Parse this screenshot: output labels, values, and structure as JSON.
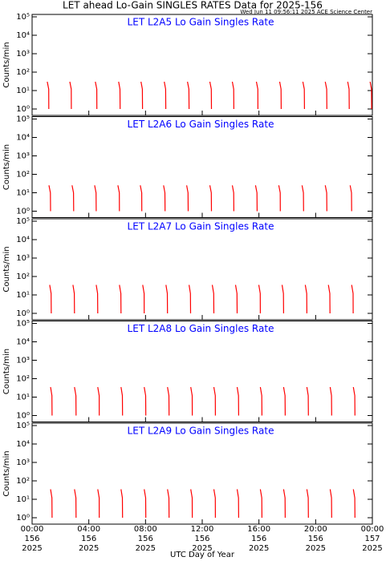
{
  "title": "LET ahead Lo-Gain SINGLES RATES Data for 2025-156",
  "timestamp": "Wed Jun 11 09:56:11 2025 ACE Science Center",
  "xlabel": "UTC Day of Year",
  "xlim": [
    0,
    24
  ],
  "xticks": [
    {
      "value": 0,
      "label": "00:00",
      "day": "156",
      "year": "2025"
    },
    {
      "value": 4,
      "label": "04:00",
      "day": "156",
      "year": "2025"
    },
    {
      "value": 8,
      "label": "08:00",
      "day": "156",
      "year": "2025"
    },
    {
      "value": 12,
      "label": "12:00",
      "day": "156",
      "year": "2025"
    },
    {
      "value": 16,
      "label": "16:00",
      "day": "156",
      "year": "2025"
    },
    {
      "value": 20,
      "label": "20:00",
      "day": "156",
      "year": "2025"
    },
    {
      "value": 24,
      "label": "00:00",
      "day": "157",
      "year": "2025"
    }
  ],
  "chart_data": [
    {
      "type": "line",
      "title": "LET L2A5 Lo Gain Singles Rate",
      "ylabel": "Counts/min",
      "log_y": true,
      "color": "#ff0000",
      "ylim": [
        1,
        100000
      ],
      "yticks": [
        {
          "value": 1,
          "label": "10⁰"
        },
        {
          "value": 10,
          "label": "10¹"
        },
        {
          "value": 100,
          "label": "10²"
        },
        {
          "value": 1000,
          "label": "10³"
        },
        {
          "value": 10000,
          "label": "10⁴"
        },
        {
          "value": 100000,
          "label": "10⁵"
        }
      ],
      "x": [
        1.07,
        1.17,
        1.18,
        null,
        2.66,
        2.76,
        2.77,
        null,
        4.46,
        4.56,
        4.57,
        null,
        6.1,
        6.2,
        6.21,
        null,
        7.68,
        7.78,
        7.79,
        null,
        9.32,
        9.42,
        9.43,
        null,
        10.96,
        11.06,
        11.07,
        null,
        12.54,
        12.64,
        12.65,
        null,
        14.12,
        14.22,
        14.23,
        null,
        15.82,
        15.92,
        15.93,
        null,
        17.46,
        17.56,
        17.57,
        null,
        19.1,
        19.2,
        19.21,
        null,
        20.68,
        20.78,
        20.79,
        null,
        22.26,
        22.36,
        22.37,
        null,
        23.84,
        23.94,
        23.95,
        null
      ],
      "values": [
        30,
        12,
        1,
        null,
        30,
        12,
        1,
        null,
        30,
        12,
        1,
        null,
        30,
        12,
        1,
        null,
        30,
        12,
        1,
        null,
        30,
        12,
        1,
        null,
        30,
        12,
        1,
        null,
        30,
        12,
        1,
        null,
        30,
        12,
        1,
        null,
        30,
        12,
        1,
        null,
        30,
        12,
        1,
        null,
        30,
        12,
        1,
        null,
        30,
        12,
        1,
        null,
        30,
        12,
        1,
        null,
        30,
        12,
        1,
        null
      ]
    },
    {
      "type": "line",
      "title": "LET L2A6 Lo Gain Singles Rate",
      "ylabel": "Counts/min",
      "log_y": true,
      "color": "#ff0000",
      "ylim": [
        1,
        100000
      ],
      "yticks": [
        {
          "value": 1,
          "label": "10⁰"
        },
        {
          "value": 10,
          "label": "10¹"
        },
        {
          "value": 100,
          "label": "10²"
        },
        {
          "value": 1000,
          "label": "10³"
        },
        {
          "value": 10000,
          "label": "10⁴"
        },
        {
          "value": 100000,
          "label": "10⁵"
        }
      ],
      "x": [
        1.19,
        1.29,
        1.3,
        null,
        2.82,
        2.92,
        2.93,
        null,
        4.41,
        4.51,
        4.52,
        null,
        6.05,
        6.15,
        6.16,
        null,
        7.63,
        7.73,
        7.74,
        null,
        9.27,
        9.37,
        9.38,
        null,
        10.9,
        11.0,
        11.01,
        null,
        12.54,
        12.64,
        12.65,
        null,
        14.12,
        14.22,
        14.23,
        null,
        15.76,
        15.86,
        15.87,
        null,
        17.4,
        17.5,
        17.51,
        null,
        19.04,
        19.14,
        19.15,
        null,
        20.68,
        20.78,
        20.79,
        null,
        22.43,
        22.53,
        22.54,
        null
      ],
      "values": [
        25,
        10,
        1,
        null,
        25,
        10,
        1,
        null,
        25,
        10,
        1,
        null,
        25,
        10,
        1,
        null,
        25,
        10,
        1,
        null,
        25,
        10,
        1,
        null,
        25,
        10,
        1,
        null,
        25,
        10,
        1,
        null,
        25,
        10,
        1,
        null,
        25,
        10,
        1,
        null,
        25,
        10,
        1,
        null,
        25,
        10,
        1,
        null,
        25,
        10,
        1,
        null,
        25,
        10,
        1,
        null
      ]
    },
    {
      "type": "line",
      "title": "LET L2A7 Lo Gain Singles Rate",
      "ylabel": "Counts/min",
      "log_y": true,
      "color": "#ff0000",
      "ylim": [
        1,
        100000
      ],
      "yticks": [
        {
          "value": 1,
          "label": "10⁰"
        },
        {
          "value": 10,
          "label": "10¹"
        },
        {
          "value": 100,
          "label": "10²"
        },
        {
          "value": 1000,
          "label": "10³"
        },
        {
          "value": 10000,
          "label": "10⁴"
        },
        {
          "value": 100000,
          "label": "10⁵"
        }
      ],
      "x": [
        1.24,
        1.34,
        1.35,
        null,
        2.88,
        2.98,
        2.99,
        null,
        4.52,
        4.62,
        4.63,
        null,
        6.16,
        6.26,
        6.27,
        null,
        7.8,
        7.9,
        7.91,
        null,
        9.44,
        9.54,
        9.55,
        null,
        11.07,
        11.17,
        11.18,
        null,
        12.71,
        12.81,
        12.82,
        null,
        14.35,
        14.45,
        14.46,
        null,
        15.99,
        16.09,
        16.1,
        null,
        17.63,
        17.73,
        17.74,
        null,
        19.27,
        19.37,
        19.38,
        null,
        20.9,
        21.0,
        21.01,
        null,
        22.54,
        22.64,
        22.65,
        null
      ],
      "values": [
        35,
        12,
        1,
        null,
        35,
        12,
        1,
        null,
        35,
        12,
        1,
        null,
        35,
        12,
        1,
        null,
        35,
        12,
        1,
        null,
        35,
        12,
        1,
        null,
        35,
        12,
        1,
        null,
        35,
        12,
        1,
        null,
        35,
        12,
        1,
        null,
        35,
        12,
        1,
        null,
        35,
        12,
        1,
        null,
        35,
        12,
        1,
        null,
        35,
        12,
        1,
        null,
        35,
        12,
        1,
        null
      ]
    },
    {
      "type": "line",
      "title": "LET L2A8 Lo Gain Singles Rate",
      "ylabel": "Counts/min",
      "log_y": true,
      "color": "#ff0000",
      "ylim": [
        1,
        100000
      ],
      "yticks": [
        {
          "value": 1,
          "label": "10⁰"
        },
        {
          "value": 10,
          "label": "10¹"
        },
        {
          "value": 100,
          "label": "10²"
        },
        {
          "value": 1000,
          "label": "10³"
        },
        {
          "value": 10000,
          "label": "10⁴"
        },
        {
          "value": 100000,
          "label": "10⁵"
        }
      ],
      "x": [
        1.3,
        1.4,
        1.41,
        null,
        2.99,
        3.09,
        3.1,
        null,
        4.63,
        4.73,
        4.74,
        null,
        6.27,
        6.37,
        6.38,
        null,
        7.91,
        8.01,
        8.02,
        null,
        9.55,
        9.65,
        9.66,
        null,
        11.19,
        11.29,
        11.3,
        null,
        12.82,
        12.92,
        12.93,
        null,
        14.46,
        14.56,
        14.57,
        null,
        16.1,
        16.2,
        16.21,
        null,
        17.74,
        17.84,
        17.85,
        null,
        19.38,
        19.48,
        19.49,
        null,
        21.02,
        21.12,
        21.13,
        null,
        22.66,
        22.76,
        22.77,
        null
      ],
      "values": [
        35,
        12,
        1,
        null,
        35,
        12,
        1,
        null,
        35,
        12,
        1,
        null,
        35,
        12,
        1,
        null,
        35,
        12,
        1,
        null,
        35,
        12,
        1,
        null,
        35,
        12,
        1,
        null,
        35,
        12,
        1,
        null,
        35,
        12,
        1,
        null,
        35,
        12,
        1,
        null,
        35,
        12,
        1,
        null,
        35,
        12,
        1,
        null,
        35,
        12,
        1,
        null,
        35,
        12,
        1,
        null
      ]
    },
    {
      "type": "line",
      "title": "LET L2A9 Lo Gain Singles Rate",
      "ylabel": "Counts/min",
      "log_y": true,
      "color": "#ff0000",
      "ylim": [
        1,
        100000
      ],
      "yticks": [
        {
          "value": 1,
          "label": "10⁰"
        },
        {
          "value": 10,
          "label": "10¹"
        },
        {
          "value": 100,
          "label": "10²"
        },
        {
          "value": 1000,
          "label": "10³"
        },
        {
          "value": 10000,
          "label": "10⁴"
        },
        {
          "value": 100000,
          "label": "10⁵"
        }
      ],
      "x": [
        1.3,
        1.4,
        1.41,
        null,
        2.99,
        3.09,
        3.1,
        null,
        4.63,
        4.73,
        4.74,
        null,
        6.27,
        6.37,
        6.38,
        null,
        7.91,
        8.01,
        8.02,
        null,
        9.55,
        9.65,
        9.66,
        null,
        11.19,
        11.29,
        11.3,
        null,
        12.82,
        12.92,
        12.93,
        null,
        14.46,
        14.56,
        14.57,
        null,
        16.1,
        16.2,
        16.21,
        null,
        17.74,
        17.84,
        17.85,
        null,
        19.38,
        19.48,
        19.49,
        null,
        21.02,
        21.12,
        21.13,
        null,
        22.66,
        22.76,
        22.77,
        null
      ],
      "values": [
        35,
        12,
        1,
        null,
        35,
        12,
        1,
        null,
        35,
        12,
        1,
        null,
        35,
        12,
        1,
        null,
        35,
        12,
        1,
        null,
        35,
        12,
        1,
        null,
        35,
        12,
        1,
        null,
        35,
        12,
        1,
        null,
        35,
        12,
        1,
        null,
        35,
        12,
        1,
        null,
        35,
        12,
        1,
        null,
        35,
        12,
        1,
        null,
        35,
        12,
        1,
        null,
        35,
        12,
        1,
        null
      ]
    }
  ]
}
